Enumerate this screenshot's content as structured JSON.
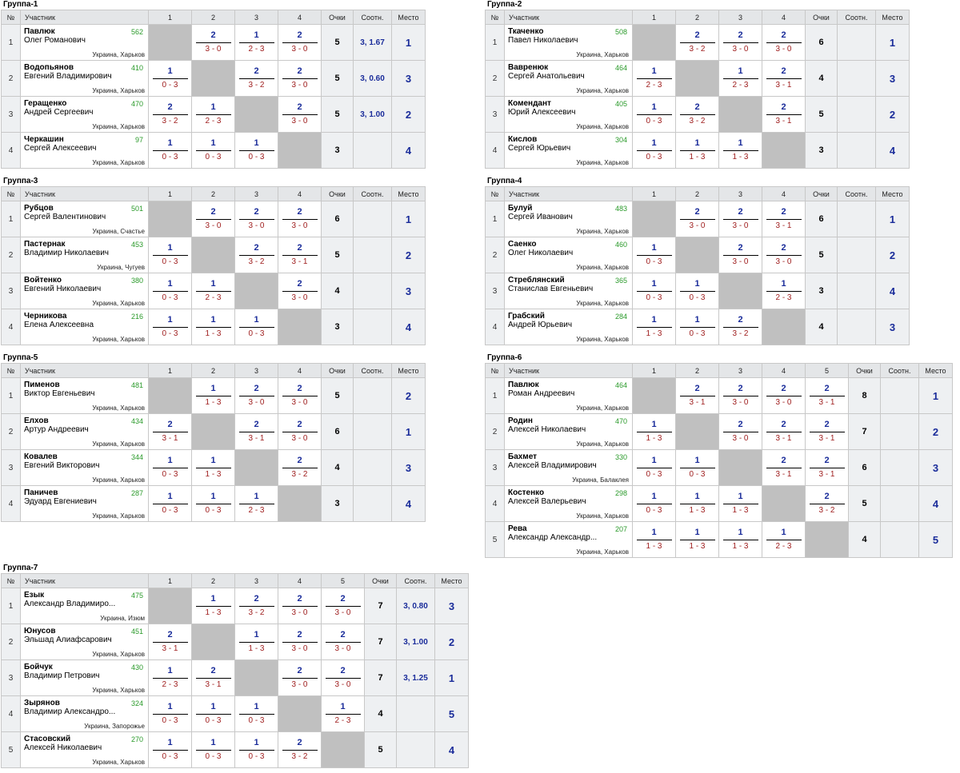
{
  "headers": {
    "num": "№",
    "participant": "Участник",
    "points": "Очки",
    "sootn": "Соотн.",
    "place": "Место"
  },
  "groups": [
    {
      "title": "Группа-1",
      "cols": [
        "1",
        "2",
        "3",
        "4"
      ],
      "rows": [
        {
          "num": "1",
          "surname": "Павлюк",
          "name": "Олег Романович",
          "rating": "562",
          "location": "Украина, Харьков",
          "results": [
            null,
            [
              "2",
              "3 - 0"
            ],
            [
              "1",
              "2 - 3"
            ],
            [
              "2",
              "3 - 0"
            ]
          ],
          "points": "5",
          "sootn": "3, 1.67",
          "place": "1"
        },
        {
          "num": "2",
          "surname": "Водопьянов",
          "name": "Евгений Владимирович",
          "rating": "410",
          "location": "Украина, Харьков",
          "results": [
            [
              "1",
              "0 - 3"
            ],
            null,
            [
              "2",
              "3 - 2"
            ],
            [
              "2",
              "3 - 0"
            ]
          ],
          "points": "5",
          "sootn": "3, 0.60",
          "place": "3"
        },
        {
          "num": "3",
          "surname": "Геращенко",
          "name": "Андрей Сергеевич",
          "rating": "470",
          "location": "Украина, Харьков",
          "results": [
            [
              "2",
              "3 - 2"
            ],
            [
              "1",
              "2 - 3"
            ],
            null,
            [
              "2",
              "3 - 0"
            ]
          ],
          "points": "5",
          "sootn": "3, 1.00",
          "place": "2"
        },
        {
          "num": "4",
          "surname": "Черкашин",
          "name": "Сергей Алексеевич",
          "rating": "97",
          "location": "Украина, Харьков",
          "results": [
            [
              "1",
              "0 - 3"
            ],
            [
              "1",
              "0 - 3"
            ],
            [
              "1",
              "0 - 3"
            ],
            null
          ],
          "points": "3",
          "sootn": "",
          "place": "4"
        }
      ]
    },
    {
      "title": "Группа-2",
      "cols": [
        "1",
        "2",
        "3",
        "4"
      ],
      "rows": [
        {
          "num": "1",
          "surname": "Ткаченко",
          "name": "Павел Николаевич",
          "rating": "508",
          "location": "Украина, Харьков",
          "results": [
            null,
            [
              "2",
              "3 - 2"
            ],
            [
              "2",
              "3 - 0"
            ],
            [
              "2",
              "3 - 0"
            ]
          ],
          "points": "6",
          "sootn": "",
          "place": "1"
        },
        {
          "num": "2",
          "surname": "Вавренюк",
          "name": "Сергей Анатольевич",
          "rating": "464",
          "location": "Украина, Харьков",
          "results": [
            [
              "1",
              "2 - 3"
            ],
            null,
            [
              "1",
              "2 - 3"
            ],
            [
              "2",
              "3 - 1"
            ]
          ],
          "points": "4",
          "sootn": "",
          "place": "3"
        },
        {
          "num": "3",
          "surname": "Комендант",
          "name": "Юрий Алексеевич",
          "rating": "405",
          "location": "Украина, Харьков",
          "results": [
            [
              "1",
              "0 - 3"
            ],
            [
              "2",
              "3 - 2"
            ],
            null,
            [
              "2",
              "3 - 1"
            ]
          ],
          "points": "5",
          "sootn": "",
          "place": "2"
        },
        {
          "num": "4",
          "surname": "Кислов",
          "name": "Сергей Юрьевич",
          "rating": "304",
          "location": "Украина, Харьков",
          "results": [
            [
              "1",
              "0 - 3"
            ],
            [
              "1",
              "1 - 3"
            ],
            [
              "1",
              "1 - 3"
            ],
            null
          ],
          "points": "3",
          "sootn": "",
          "place": "4"
        }
      ]
    },
    {
      "title": "Группа-3",
      "cols": [
        "1",
        "2",
        "3",
        "4"
      ],
      "rows": [
        {
          "num": "1",
          "surname": "Рубцов",
          "name": "Сергей Валентинович",
          "rating": "501",
          "location": "Украина, Счастье",
          "results": [
            null,
            [
              "2",
              "3 - 0"
            ],
            [
              "2",
              "3 - 0"
            ],
            [
              "2",
              "3 - 0"
            ]
          ],
          "points": "6",
          "sootn": "",
          "place": "1"
        },
        {
          "num": "2",
          "surname": "Пастернак",
          "name": "Владимир Николаевич",
          "rating": "453",
          "location": "Украина, Чугуев",
          "results": [
            [
              "1",
              "0 - 3"
            ],
            null,
            [
              "2",
              "3 - 2"
            ],
            [
              "2",
              "3 - 1"
            ]
          ],
          "points": "5",
          "sootn": "",
          "place": "2"
        },
        {
          "num": "3",
          "surname": "Войтенко",
          "name": "Евгений Николаевич",
          "rating": "380",
          "location": "Украина, Харьков",
          "results": [
            [
              "1",
              "0 - 3"
            ],
            [
              "1",
              "2 - 3"
            ],
            null,
            [
              "2",
              "3 - 0"
            ]
          ],
          "points": "4",
          "sootn": "",
          "place": "3"
        },
        {
          "num": "4",
          "surname": "Черникова",
          "name": "Елена Алексеевна",
          "rating": "216",
          "location": "Украина, Харьков",
          "results": [
            [
              "1",
              "0 - 3"
            ],
            [
              "1",
              "1 - 3"
            ],
            [
              "1",
              "0 - 3"
            ],
            null
          ],
          "points": "3",
          "sootn": "",
          "place": "4"
        }
      ]
    },
    {
      "title": "Группа-4",
      "cols": [
        "1",
        "2",
        "3",
        "4"
      ],
      "rows": [
        {
          "num": "1",
          "surname": "Булуй",
          "name": "Сергей Иванович",
          "rating": "483",
          "location": "Украина, Харьков",
          "results": [
            null,
            [
              "2",
              "3 - 0"
            ],
            [
              "2",
              "3 - 0"
            ],
            [
              "2",
              "3 - 1"
            ]
          ],
          "points": "6",
          "sootn": "",
          "place": "1"
        },
        {
          "num": "2",
          "surname": "Саенко",
          "name": "Олег Николаевич",
          "rating": "460",
          "location": "Украина, Харьков",
          "results": [
            [
              "1",
              "0 - 3"
            ],
            null,
            [
              "2",
              "3 - 0"
            ],
            [
              "2",
              "3 - 0"
            ]
          ],
          "points": "5",
          "sootn": "",
          "place": "2"
        },
        {
          "num": "3",
          "surname": "Стреблянский",
          "name": "Станислав Евгеньевич",
          "rating": "365",
          "location": "Украина, Харьков",
          "results": [
            [
              "1",
              "0 - 3"
            ],
            [
              "1",
              "0 - 3"
            ],
            null,
            [
              "1",
              "2 - 3"
            ]
          ],
          "points": "3",
          "sootn": "",
          "place": "4"
        },
        {
          "num": "4",
          "surname": "Грабский",
          "name": "Андрей Юрьевич",
          "rating": "284",
          "location": "Украина, Харьков",
          "results": [
            [
              "1",
              "1 - 3"
            ],
            [
              "1",
              "0 - 3"
            ],
            [
              "2",
              "3 - 2"
            ],
            null
          ],
          "points": "4",
          "sootn": "",
          "place": "3"
        }
      ]
    },
    {
      "title": "Группа-5",
      "cols": [
        "1",
        "2",
        "3",
        "4"
      ],
      "rows": [
        {
          "num": "1",
          "surname": "Пименов",
          "name": "Виктор Евгеньевич",
          "rating": "481",
          "location": "Украина, Харьков",
          "results": [
            null,
            [
              "1",
              "1 - 3"
            ],
            [
              "2",
              "3 - 0"
            ],
            [
              "2",
              "3 - 0"
            ]
          ],
          "points": "5",
          "sootn": "",
          "place": "2"
        },
        {
          "num": "2",
          "surname": "Елхов",
          "name": "Артур Андреевич",
          "rating": "434",
          "location": "Украина, Харьков",
          "results": [
            [
              "2",
              "3 - 1"
            ],
            null,
            [
              "2",
              "3 - 1"
            ],
            [
              "2",
              "3 - 0"
            ]
          ],
          "points": "6",
          "sootn": "",
          "place": "1"
        },
        {
          "num": "3",
          "surname": "Ковалев",
          "name": "Евгений Викторович",
          "rating": "344",
          "location": "Украина, Харьков",
          "results": [
            [
              "1",
              "0 - 3"
            ],
            [
              "1",
              "1 - 3"
            ],
            null,
            [
              "2",
              "3 - 2"
            ]
          ],
          "points": "4",
          "sootn": "",
          "place": "3"
        },
        {
          "num": "4",
          "surname": "Паничев",
          "name": "Эдуард Евгениевич",
          "rating": "287",
          "location": "Украина, Харьков",
          "results": [
            [
              "1",
              "0 - 3"
            ],
            [
              "1",
              "0 - 3"
            ],
            [
              "1",
              "2 - 3"
            ],
            null
          ],
          "points": "3",
          "sootn": "",
          "place": "4"
        }
      ]
    },
    {
      "title": "Группа-6",
      "cols": [
        "1",
        "2",
        "3",
        "4",
        "5"
      ],
      "rows": [
        {
          "num": "1",
          "surname": "Павлюк",
          "name": "Роман Андреевич",
          "rating": "464",
          "location": "Украина, Харьков",
          "results": [
            null,
            [
              "2",
              "3 - 1"
            ],
            [
              "2",
              "3 - 0"
            ],
            [
              "2",
              "3 - 0"
            ],
            [
              "2",
              "3 - 1"
            ]
          ],
          "points": "8",
          "sootn": "",
          "place": "1"
        },
        {
          "num": "2",
          "surname": "Родин",
          "name": "Алексей Николаевич",
          "rating": "470",
          "location": "Украина, Харьков",
          "results": [
            [
              "1",
              "1 - 3"
            ],
            null,
            [
              "2",
              "3 - 0"
            ],
            [
              "2",
              "3 - 1"
            ],
            [
              "2",
              "3 - 1"
            ]
          ],
          "points": "7",
          "sootn": "",
          "place": "2"
        },
        {
          "num": "3",
          "surname": "Бахмет",
          "name": "Алексей Владимирович",
          "rating": "330",
          "location": "Украина, Балаклея",
          "results": [
            [
              "1",
              "0 - 3"
            ],
            [
              "1",
              "0 - 3"
            ],
            null,
            [
              "2",
              "3 - 1"
            ],
            [
              "2",
              "3 - 1"
            ]
          ],
          "points": "6",
          "sootn": "",
          "place": "3"
        },
        {
          "num": "4",
          "surname": "Костенко",
          "name": "Алексей Валерьевич",
          "rating": "298",
          "location": "Украина, Харьков",
          "results": [
            [
              "1",
              "0 - 3"
            ],
            [
              "1",
              "1 - 3"
            ],
            [
              "1",
              "1 - 3"
            ],
            null,
            [
              "2",
              "3 - 2"
            ]
          ],
          "points": "5",
          "sootn": "",
          "place": "4"
        },
        {
          "num": "5",
          "surname": "Рева",
          "name": "Александр Александр...",
          "rating": "207",
          "location": "Украина, Харьков",
          "results": [
            [
              "1",
              "1 - 3"
            ],
            [
              "1",
              "1 - 3"
            ],
            [
              "1",
              "1 - 3"
            ],
            [
              "1",
              "2 - 3"
            ],
            null
          ],
          "points": "4",
          "sootn": "",
          "place": "5"
        }
      ]
    },
    {
      "title": "Группа-7",
      "cols": [
        "1",
        "2",
        "3",
        "4",
        "5"
      ],
      "rows": [
        {
          "num": "1",
          "surname": "Езык",
          "name": "Александр Владимиро...",
          "rating": "475",
          "location": "Украина, Изюм",
          "results": [
            null,
            [
              "1",
              "1 - 3"
            ],
            [
              "2",
              "3 - 2"
            ],
            [
              "2",
              "3 - 0"
            ],
            [
              "2",
              "3 - 0"
            ]
          ],
          "points": "7",
          "sootn": "3, 0.80",
          "place": "3"
        },
        {
          "num": "2",
          "surname": "Юнусов",
          "name": "Эльшад Алиафсарович",
          "rating": "451",
          "location": "Украина, Харьков",
          "results": [
            [
              "2",
              "3 - 1"
            ],
            null,
            [
              "1",
              "1 - 3"
            ],
            [
              "2",
              "3 - 0"
            ],
            [
              "2",
              "3 - 0"
            ]
          ],
          "points": "7",
          "sootn": "3, 1.00",
          "place": "2"
        },
        {
          "num": "3",
          "surname": "Бойчук",
          "name": "Владимир Петрович",
          "rating": "430",
          "location": "Украина, Харьков",
          "results": [
            [
              "1",
              "2 - 3"
            ],
            [
              "2",
              "3 - 1"
            ],
            null,
            [
              "2",
              "3 - 0"
            ],
            [
              "2",
              "3 - 0"
            ]
          ],
          "points": "7",
          "sootn": "3, 1.25",
          "place": "1"
        },
        {
          "num": "4",
          "surname": "Зырянов",
          "name": "Владимир Александро...",
          "rating": "324",
          "location": "Украина, Запорожье",
          "results": [
            [
              "1",
              "0 - 3"
            ],
            [
              "1",
              "0 - 3"
            ],
            [
              "1",
              "0 - 3"
            ],
            null,
            [
              "1",
              "2 - 3"
            ]
          ],
          "points": "4",
          "sootn": "",
          "place": "5"
        },
        {
          "num": "5",
          "surname": "Стасовский",
          "name": "Алексей Николаевич",
          "rating": "270",
          "location": "Украина, Харьков",
          "results": [
            [
              "1",
              "0 - 3"
            ],
            [
              "1",
              "0 - 3"
            ],
            [
              "1",
              "0 - 3"
            ],
            [
              "2",
              "3 - 2"
            ],
            null
          ],
          "points": "5",
          "sootn": "",
          "place": "4"
        }
      ]
    }
  ]
}
